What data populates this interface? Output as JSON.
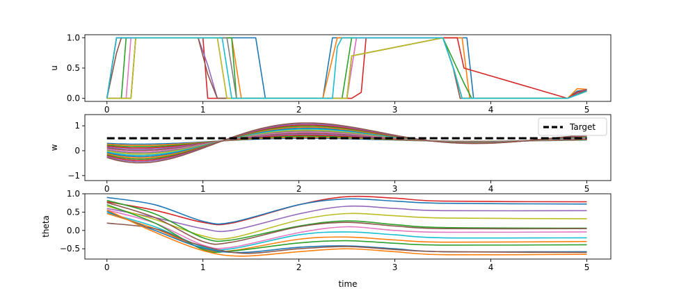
{
  "chart_data": [
    {
      "type": "line",
      "ylabel": "u",
      "xlabel": "",
      "xlim": [
        -0.23,
        5.25
      ],
      "ylim": [
        -0.05,
        1.05
      ],
      "xticks": [
        "0",
        "1",
        "2",
        "3",
        "4",
        "5"
      ],
      "yticks": [
        "0.0",
        "0.5",
        "1.0"
      ],
      "grid": false,
      "colors": [
        "#1f77b4",
        "#ff7f0e",
        "#2ca02c",
        "#d62728",
        "#9467bd",
        "#8c564b",
        "#e377c2",
        "#7f7f7f",
        "#bcbd22",
        "#17becf"
      ],
      "series": [
        {
          "x": [
            0,
            0.1,
            1.0,
            1.1,
            1.55,
            1.65,
            2.25,
            2.35,
            3.5,
            3.75,
            3.82,
            4.8,
            4.9,
            5.0
          ],
          "values": [
            0,
            1,
            1,
            1,
            1,
            0,
            0,
            1,
            1,
            1,
            0,
            0,
            0.12,
            0.14
          ]
        },
        {
          "x": [
            0,
            0.25,
            0.3,
            1.0,
            1.3,
            1.4,
            2.25,
            2.4,
            3.5,
            3.7,
            3.78,
            4.8,
            4.9,
            5.0
          ],
          "values": [
            0,
            0,
            1,
            1,
            1,
            0,
            0,
            1,
            1,
            1,
            0,
            0,
            0.16,
            0.15
          ]
        },
        {
          "x": [
            0,
            0.15,
            0.2,
            1.0,
            1.3,
            1.35,
            2.45,
            2.55,
            3.5,
            3.72,
            3.8,
            4.8,
            4.9,
            5.0
          ],
          "values": [
            0,
            0,
            1,
            1,
            1,
            0,
            0,
            1,
            1,
            0.25,
            0,
            0,
            0.1,
            0.15
          ]
        },
        {
          "x": [
            0,
            0.1,
            1.0,
            1.05,
            2.55,
            2.65,
            2.7,
            3.5,
            3.65,
            3.72,
            4.8,
            4.9,
            5.0
          ],
          "values": [
            0,
            1,
            1,
            0,
            0,
            0.1,
            1,
            1,
            1,
            0.5,
            0,
            0.1,
            0.15
          ]
        },
        {
          "x": [
            0,
            0.25,
            0.3,
            0.95,
            1.05,
            1.15,
            2.5,
            2.6,
            3.5,
            3.62,
            3.7,
            4.8,
            5.0
          ],
          "values": [
            0,
            0,
            1,
            1,
            0.55,
            0,
            0,
            1,
            1,
            0.45,
            0,
            0,
            0.15
          ]
        },
        {
          "x": [
            0,
            0.1,
            0.15,
            0.95,
            1.05,
            1.15,
            2.5,
            2.55,
            3.5,
            3.6,
            3.68,
            4.8,
            5.0
          ],
          "values": [
            0,
            0.75,
            1,
            1,
            0.4,
            0,
            0,
            0.7,
            1,
            0.55,
            0,
            0,
            0.14
          ]
        },
        {
          "x": [
            0,
            0.2,
            0.25,
            1.0,
            1.15,
            1.25,
            2.5,
            2.6,
            3.5,
            3.62,
            3.7,
            4.8,
            5.0
          ],
          "values": [
            0,
            0,
            1,
            1,
            1,
            0,
            0,
            1,
            1,
            0.45,
            0,
            0,
            0.12
          ]
        },
        {
          "x": [
            0,
            0.25,
            0.3,
            1.0,
            1.25,
            1.35,
            2.5,
            2.55,
            3.5,
            3.62,
            3.7,
            4.8,
            5.0
          ],
          "values": [
            0,
            0,
            1,
            1,
            1,
            0,
            0,
            0.7,
            1,
            0.45,
            0,
            0,
            0.12
          ]
        },
        {
          "x": [
            0,
            0.25,
            0.3,
            1.0,
            1.15,
            1.25,
            2.5,
            2.55,
            3.5,
            3.62,
            3.7,
            4.8,
            5.0
          ],
          "values": [
            0,
            0,
            1,
            1,
            1,
            0,
            0,
            0.7,
            1,
            0.45,
            0,
            0,
            0.12
          ]
        },
        {
          "x": [
            0,
            0.1,
            1.0,
            1.2,
            1.3,
            2.35,
            2.4,
            2.45,
            3.5,
            3.62,
            3.7,
            4.8,
            5.0
          ],
          "values": [
            0,
            1,
            1,
            1,
            0,
            0,
            0.85,
            1,
            1,
            0.45,
            0,
            0,
            0.12
          ]
        }
      ]
    },
    {
      "type": "line",
      "ylabel": "w",
      "xlabel": "",
      "xlim": [
        -0.23,
        5.25
      ],
      "ylim": [
        -1.2,
        1.45
      ],
      "xticks": [
        "0",
        "1",
        "2",
        "3",
        "4",
        "5"
      ],
      "yticks": [
        "−1",
        "0",
        "1"
      ],
      "grid": false,
      "legend_position": "top-right",
      "legend": [
        "Target"
      ],
      "target_value": 0.5,
      "series_amplitudes": [
        0.13,
        0.18,
        0.23,
        0.28,
        0.33,
        0.38,
        0.43,
        0.48,
        0.53,
        0.58,
        0.63,
        0.68,
        0.73,
        0.78,
        0.83,
        0.88
      ],
      "series_colors": [
        "#1f77b4",
        "#ff7f0e",
        "#2ca02c",
        "#d62728",
        "#9467bd",
        "#8c564b",
        "#e377c2",
        "#7f7f7f",
        "#bcbd22",
        "#17becf",
        "#1f77b4",
        "#ff7f0e",
        "#2ca02c",
        "#d62728",
        "#9467bd",
        "#8c564b"
      ]
    },
    {
      "type": "line",
      "ylabel": "theta",
      "xlabel": "time",
      "xlim": [
        -0.23,
        5.25
      ],
      "ylim": [
        -0.78,
        1.0
      ],
      "xticks": [
        "0",
        "1",
        "2",
        "3",
        "4",
        "5"
      ],
      "yticks": [
        "−0.5",
        "0.0",
        "0.5",
        "1.0"
      ],
      "grid": false,
      "series": [
        {
          "color": "#d62728",
          "points": [
            [
              0,
              0.78
            ],
            [
              0.5,
              0.55
            ],
            [
              1.0,
              0.22
            ],
            [
              1.3,
              0.2
            ],
            [
              2.0,
              0.7
            ],
            [
              2.5,
              0.92
            ],
            [
              3.0,
              0.88
            ],
            [
              3.5,
              0.8
            ],
            [
              5.0,
              0.78
            ]
          ]
        },
        {
          "color": "#1f77b4",
          "points": [
            [
              0,
              0.9
            ],
            [
              0.5,
              0.7
            ],
            [
              1.0,
              0.25
            ],
            [
              1.3,
              0.22
            ],
            [
              2.0,
              0.7
            ],
            [
              2.5,
              0.86
            ],
            [
              3.0,
              0.8
            ],
            [
              3.5,
              0.74
            ],
            [
              5.0,
              0.72
            ]
          ]
        },
        {
          "color": "#9467bd",
          "points": [
            [
              0,
              0.6
            ],
            [
              0.5,
              0.35
            ],
            [
              1.0,
              0.05
            ],
            [
              1.3,
              0.0
            ],
            [
              2.0,
              0.45
            ],
            [
              2.5,
              0.66
            ],
            [
              3.0,
              0.6
            ],
            [
              3.5,
              0.54
            ],
            [
              5.0,
              0.54
            ]
          ]
        },
        {
          "color": "#bcbd22",
          "points": [
            [
              0,
              0.66
            ],
            [
              0.5,
              0.3
            ],
            [
              1.0,
              -0.15
            ],
            [
              1.3,
              -0.2
            ],
            [
              2.0,
              0.28
            ],
            [
              2.5,
              0.46
            ],
            [
              3.0,
              0.4
            ],
            [
              3.5,
              0.34
            ],
            [
              5.0,
              0.32
            ]
          ]
        },
        {
          "color": "#2ca02c",
          "points": [
            [
              0,
              0.82
            ],
            [
              0.5,
              0.45
            ],
            [
              1.0,
              -0.2
            ],
            [
              1.3,
              -0.26
            ],
            [
              2.0,
              0.12
            ],
            [
              2.5,
              0.26
            ],
            [
              3.0,
              0.16
            ],
            [
              3.5,
              0.08
            ],
            [
              5.0,
              0.06
            ]
          ]
        },
        {
          "color": "#8c564b",
          "points": [
            [
              0,
              0.76
            ],
            [
              0.5,
              0.35
            ],
            [
              1.0,
              -0.3
            ],
            [
              1.3,
              -0.32
            ],
            [
              2.0,
              0.1
            ],
            [
              2.5,
              0.22
            ],
            [
              3.0,
              0.12
            ],
            [
              3.5,
              0.05
            ],
            [
              5.0,
              0.05
            ]
          ]
        },
        {
          "color": "#e377c2",
          "points": [
            [
              0,
              0.56
            ],
            [
              0.5,
              0.2
            ],
            [
              1.0,
              -0.4
            ],
            [
              1.3,
              -0.46
            ],
            [
              2.0,
              -0.06
            ],
            [
              2.5,
              0.1
            ],
            [
              3.0,
              0.0
            ],
            [
              3.5,
              -0.05
            ],
            [
              5.0,
              -0.04
            ]
          ]
        },
        {
          "color": "#17becf",
          "points": [
            [
              0,
              0.48
            ],
            [
              0.5,
              0.1
            ],
            [
              1.0,
              -0.45
            ],
            [
              1.3,
              -0.5
            ],
            [
              2.0,
              -0.12
            ],
            [
              2.5,
              -0.04
            ],
            [
              3.0,
              -0.12
            ],
            [
              3.5,
              -0.2
            ],
            [
              5.0,
              -0.2
            ]
          ]
        },
        {
          "color": "#ff7f0e",
          "points": [
            [
              0,
              0.46
            ],
            [
              0.5,
              0.05
            ],
            [
              1.0,
              -0.5
            ],
            [
              1.3,
              -0.55
            ],
            [
              2.0,
              -0.24
            ],
            [
              2.5,
              -0.18
            ],
            [
              3.0,
              -0.26
            ],
            [
              3.5,
              -0.32
            ],
            [
              5.0,
              -0.3
            ]
          ]
        },
        {
          "color": "#2ca02c",
          "points": [
            [
              0,
              0.7
            ],
            [
              0.5,
              0.2
            ],
            [
              1.0,
              -0.52
            ],
            [
              1.3,
              -0.56
            ],
            [
              2.0,
              -0.34
            ],
            [
              2.5,
              -0.28
            ],
            [
              3.0,
              -0.35
            ],
            [
              3.5,
              -0.4
            ],
            [
              5.0,
              -0.39
            ]
          ]
        },
        {
          "color": "#1f77b4",
          "points": [
            [
              0,
              0.52
            ],
            [
              0.5,
              0.0
            ],
            [
              1.0,
              -0.48
            ],
            [
              1.4,
              -0.6
            ],
            [
              2.0,
              -0.46
            ],
            [
              2.5,
              -0.42
            ],
            [
              3.0,
              -0.5
            ],
            [
              3.5,
              -0.58
            ],
            [
              5.0,
              -0.58
            ]
          ]
        },
        {
          "color": "#8c564b",
          "points": [
            [
              0,
              0.2
            ],
            [
              0.5,
              0.05
            ],
            [
              0.9,
              -0.35
            ],
            [
              1.4,
              -0.62
            ],
            [
              2.0,
              -0.5
            ],
            [
              2.5,
              -0.44
            ],
            [
              3.0,
              -0.52
            ],
            [
              3.5,
              -0.58
            ],
            [
              5.0,
              -0.6
            ]
          ]
        },
        {
          "color": "#ff7f0e",
          "points": [
            [
              0,
              0.56
            ],
            [
              0.5,
              -0.05
            ],
            [
              1.0,
              -0.55
            ],
            [
              1.4,
              -0.7
            ],
            [
              2.0,
              -0.58
            ],
            [
              2.5,
              -0.5
            ],
            [
              3.0,
              -0.58
            ],
            [
              3.5,
              -0.66
            ],
            [
              5.0,
              -0.65
            ]
          ]
        }
      ]
    }
  ]
}
